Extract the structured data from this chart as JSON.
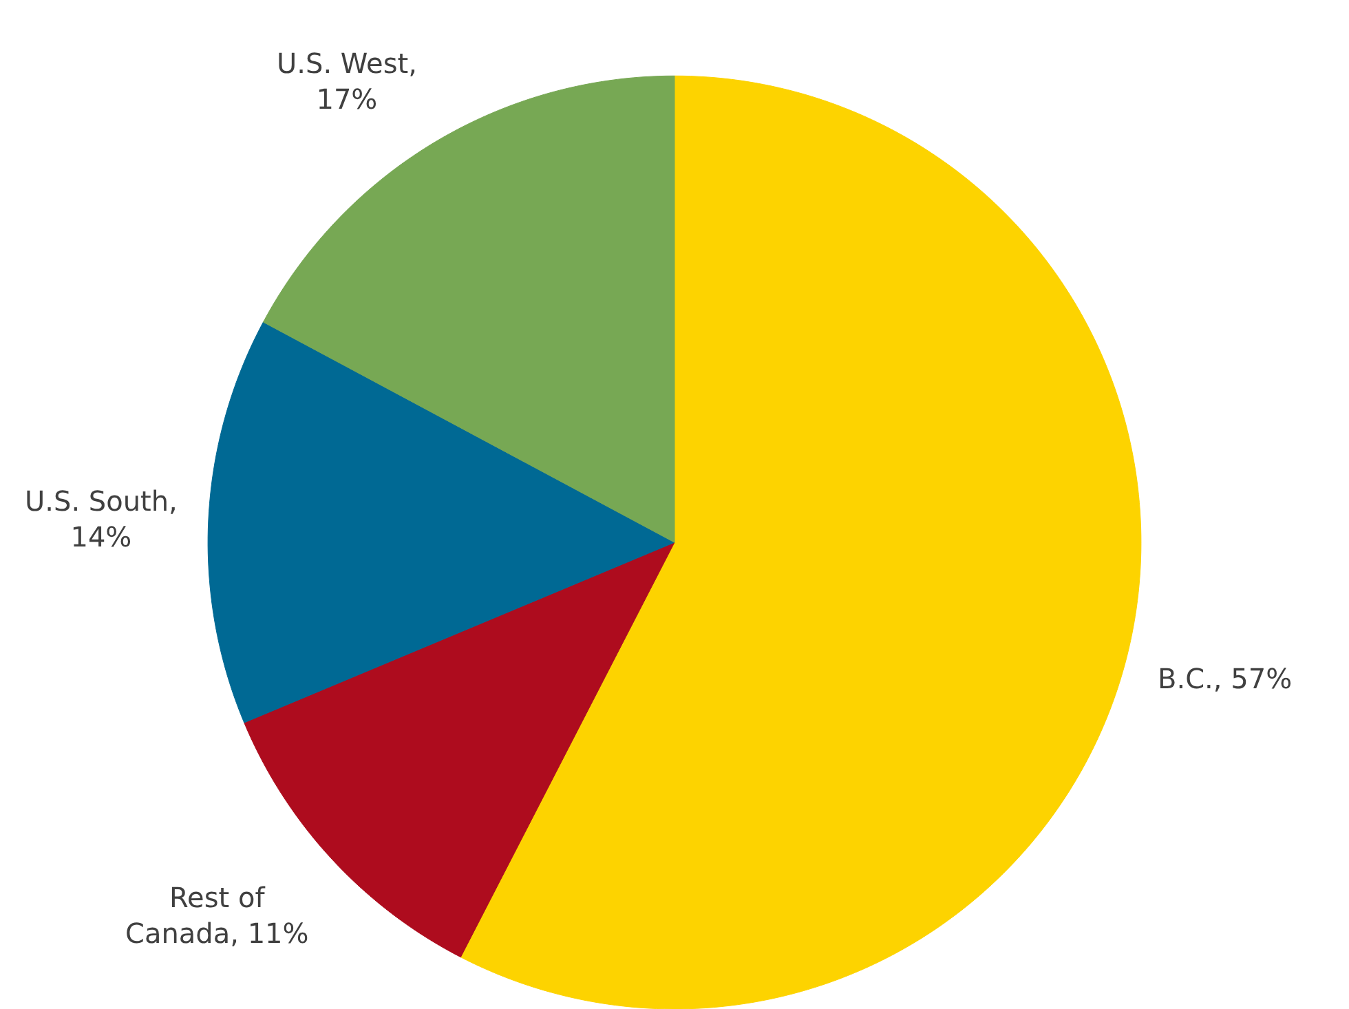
{
  "chart_data": {
    "type": "pie",
    "categories": [
      "B.C., 57%",
      "Rest of Canada, 11%",
      "U.S. South, 14%",
      "U.S. West, 17%"
    ],
    "values": [
      57,
      11,
      14,
      17
    ],
    "colors": [
      "#fdd300",
      "#ae0c1e",
      "#006994",
      "#77a854"
    ]
  }
}
